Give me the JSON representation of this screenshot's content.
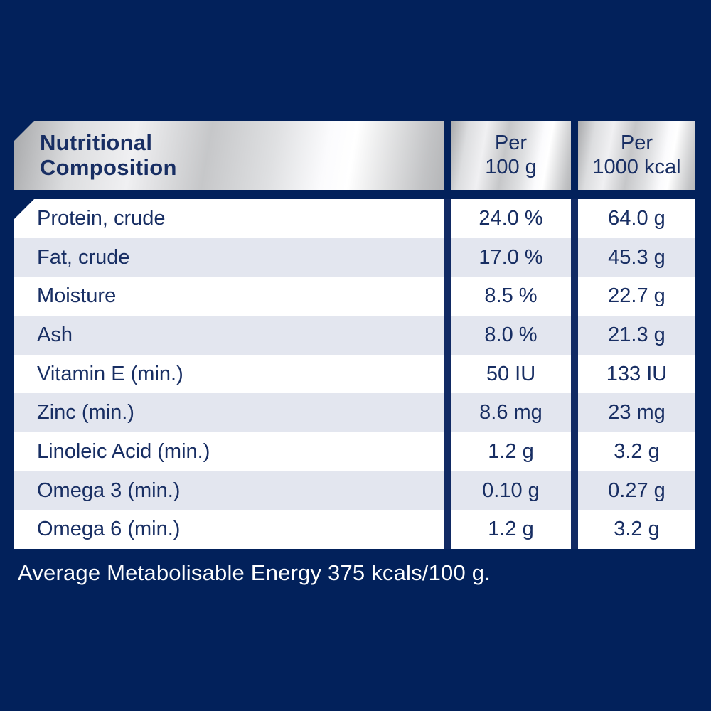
{
  "colors": {
    "background_navy": "#02215b",
    "text_navy": "#182e63",
    "row_white": "#ffffff",
    "row_alt_gray": "#e3e6ef",
    "divider_navy": "#112a64",
    "silver_light": "#f0f0f2",
    "silver_dark": "#a8a9ab",
    "footer_text": "#ffffff"
  },
  "header": {
    "title_line1": "Nutritional",
    "title_line2": "Composition",
    "col_100g_line1": "Per",
    "col_100g_line2": "100 g",
    "col_1000kcal_line1": "Per",
    "col_1000kcal_line2": "1000 kcal"
  },
  "rows": [
    {
      "label": "Protein, crude",
      "per_100g": "24.0 %",
      "per_1000kcal": "64.0 g"
    },
    {
      "label": "Fat, crude",
      "per_100g": "17.0 %",
      "per_1000kcal": "45.3 g"
    },
    {
      "label": "Moisture",
      "per_100g": "8.5 %",
      "per_1000kcal": "22.7 g"
    },
    {
      "label": "Ash",
      "per_100g": "8.0 %",
      "per_1000kcal": "21.3 g"
    },
    {
      "label": "Vitamin E (min.)",
      "per_100g": "50 IU",
      "per_1000kcal": "133 IU"
    },
    {
      "label": "Zinc (min.)",
      "per_100g": "8.6 mg",
      "per_1000kcal": "23 mg"
    },
    {
      "label": "Linoleic Acid (min.)",
      "per_100g": "1.2 g",
      "per_1000kcal": "3.2 g"
    },
    {
      "label": "Omega 3 (min.)",
      "per_100g": "0.10 g",
      "per_1000kcal": "0.27 g"
    },
    {
      "label": "Omega 6 (min.)",
      "per_100g": "1.2 g",
      "per_1000kcal": "3.2 g"
    }
  ],
  "footer": {
    "energy_text": "Average Metabolisable Energy 375 kcals/100 g."
  }
}
